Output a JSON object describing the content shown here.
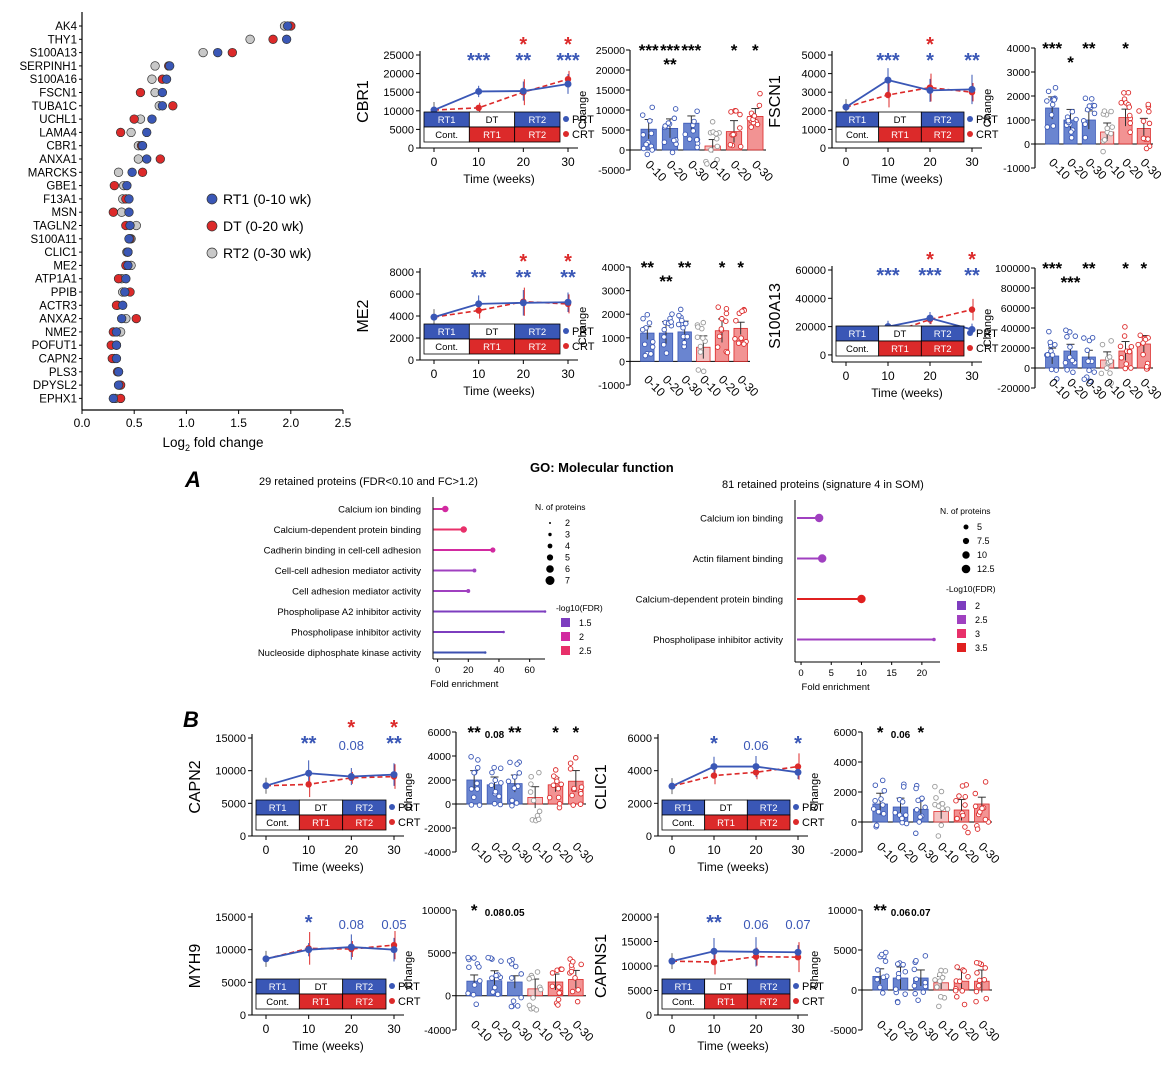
{
  "colors": {
    "blue": "#3a57b6",
    "red": "#dc2a2a",
    "gray": "#c8c8c8",
    "pinkdot": "#cc4444",
    "purple": "#8a2be2"
  },
  "left_panel": {
    "xlabel": "Log2 fold change",
    "xlabel_base": "Log",
    "xlabel_sub": "2",
    "xlabel_rest": " fold change",
    "xticks": [
      "0.0",
      "0.5",
      "1.0",
      "1.5",
      "2.0",
      "2.5"
    ],
    "legend": [
      "RT1 (0-10 wk)",
      "DT (0-20 wk)",
      "RT2 (0-30 wk)"
    ]
  },
  "chart_data": [
    {
      "type": "scatter",
      "title": "Log2 fold change per protein",
      "xlim": [
        0,
        2.5
      ],
      "categories": [
        "AK4",
        "THY1",
        "S100A13",
        "SERPINH1",
        "S100A16",
        "FSCN1",
        "TUBA1C",
        "UCHL1",
        "LAMA4",
        "CBR1",
        "ANXA1",
        "MARCKS",
        "GBE1",
        "F13A1",
        "MSN",
        "TAGLN2",
        "S100A11",
        "CLIC1",
        "ME2",
        "ATP1A1",
        "PPIB",
        "ACTR3",
        "ANXA2",
        "NME2",
        "POFUT1",
        "CAPN2",
        "PLS3",
        "DPYSL2",
        "EPHX1"
      ],
      "series": [
        {
          "name": "RT1 (0-10 wk)",
          "values": [
            1.97,
            1.96,
            1.3,
            0.84,
            0.81,
            0.77,
            0.77,
            0.67,
            0.62,
            0.58,
            0.62,
            0.48,
            0.43,
            0.45,
            0.45,
            0.46,
            0.45,
            0.44,
            0.44,
            0.42,
            0.41,
            0.39,
            0.38,
            0.33,
            0.33,
            0.33,
            0.35,
            0.35,
            0.3
          ]
        },
        {
          "name": "DT (0-20 wk)",
          "values": [
            2.0,
            1.83,
            1.44,
            0.83,
            0.77,
            0.56,
            0.87,
            0.5,
            0.37,
            0.57,
            0.75,
            0.58,
            0.31,
            0.42,
            0.3,
            0.42,
            0.46,
            0.44,
            0.42,
            0.35,
            0.46,
            0.33,
            0.52,
            0.3,
            0.28,
            0.29,
            0.34,
            0.37,
            0.37
          ]
        },
        {
          "name": "RT2 (0-30 wk)",
          "values": [
            1.94,
            1.61,
            1.16,
            0.7,
            0.67,
            0.7,
            0.74,
            0.56,
            0.47,
            0.54,
            0.54,
            0.35,
            0.4,
            0.39,
            0.38,
            0.52,
            0.47,
            0.43,
            0.47,
            0.38,
            0.39,
            0.34,
            0.42,
            0.37,
            0.33,
            0.31,
            0.35,
            0.36,
            0.32
          ]
        }
      ]
    },
    {
      "type": "line",
      "name": "CBR1",
      "label": "CBR1",
      "x": [
        0,
        10,
        20,
        30
      ],
      "ylim": [
        0,
        25000
      ],
      "yticks": [
        "0",
        "5000",
        "10000",
        "15000",
        "20000",
        "25000"
      ],
      "series": [
        {
          "name": "PRT",
          "values": [
            10200,
            15200,
            15300,
            17200
          ]
        },
        {
          "name": "CRT",
          "values": [
            10200,
            10800,
            15000,
            18500
          ]
        }
      ],
      "blue_sig": [
        "***",
        "**",
        "***"
      ],
      "red_sig": [
        "*",
        "*"
      ]
    },
    {
      "type": "line",
      "name": "FSCN1",
      "label": "FSCN1",
      "x": [
        0,
        10,
        20,
        30
      ],
      "ylim": [
        0,
        5000
      ],
      "yticks": [
        "0",
        "1000",
        "2000",
        "3000",
        "4000",
        "5000"
      ],
      "series": [
        {
          "name": "PRT",
          "values": [
            2200,
            3650,
            3100,
            3150
          ]
        },
        {
          "name": "CRT",
          "values": [
            2200,
            2850,
            3250,
            3000
          ]
        }
      ],
      "blue_sig": [
        "***",
        "*",
        "**"
      ],
      "red_sig": [
        "*",
        ""
      ]
    },
    {
      "type": "line",
      "name": "ME2",
      "label": "ME2",
      "x": [
        0,
        10,
        20,
        30
      ],
      "ylim": [
        0,
        8000
      ],
      "yticks": [
        "0",
        "2000",
        "4000",
        "6000",
        "8000"
      ],
      "series": [
        {
          "name": "PRT",
          "values": [
            3900,
            5100,
            5200,
            5250
          ]
        },
        {
          "name": "CRT",
          "values": [
            3900,
            4500,
            5300,
            5100
          ]
        }
      ],
      "blue_sig": [
        "**",
        "**",
        "**"
      ],
      "red_sig": [
        "*",
        "*"
      ]
    },
    {
      "type": "line",
      "name": "S100A13",
      "label": "S100A13",
      "x": [
        0,
        10,
        20,
        30
      ],
      "ylim": [
        -5000,
        60000
      ],
      "yticks": [
        "0",
        "20000",
        "40000",
        "60000"
      ],
      "series": [
        {
          "name": "PRT",
          "values": [
            8000,
            20000,
            26000,
            18000
          ]
        },
        {
          "name": "CRT",
          "values": [
            8000,
            15000,
            25000,
            32000
          ]
        }
      ],
      "blue_sig": [
        "***",
        "***",
        "**"
      ],
      "red_sig": [
        "*",
        "*"
      ]
    },
    {
      "type": "line",
      "name": "CAPN2",
      "label": "CAPN2",
      "x": [
        0,
        10,
        20,
        30
      ],
      "ylim": [
        0,
        15000
      ],
      "yticks": [
        "0",
        "5000",
        "10000",
        "15000"
      ],
      "series": [
        {
          "name": "PRT",
          "values": [
            7700,
            9600,
            9100,
            9400
          ]
        },
        {
          "name": "CRT",
          "values": [
            7700,
            7900,
            8900,
            9100
          ]
        }
      ],
      "blue_sig": [
        "**",
        "0.08",
        "**"
      ],
      "red_sig": [
        "*",
        "*"
      ]
    },
    {
      "type": "line",
      "name": "CLIC1",
      "label": "CLIC1",
      "x": [
        0,
        10,
        20,
        30
      ],
      "ylim": [
        0,
        6000
      ],
      "yticks": [
        "0",
        "2000",
        "4000",
        "6000"
      ],
      "series": [
        {
          "name": "PRT",
          "values": [
            3050,
            4250,
            4250,
            3900
          ]
        },
        {
          "name": "CRT",
          "values": [
            3050,
            3700,
            3900,
            4250
          ]
        }
      ],
      "blue_sig": [
        "*",
        "0.06",
        "*"
      ],
      "red_sig": []
    },
    {
      "type": "line",
      "name": "MYH9",
      "label": "MYH9",
      "x": [
        0,
        10,
        20,
        30
      ],
      "ylim": [
        0,
        15000
      ],
      "yticks": [
        "0",
        "5000",
        "10000",
        "15000"
      ],
      "series": [
        {
          "name": "PRT",
          "values": [
            8600,
            10000,
            10400,
            10000
          ]
        },
        {
          "name": "CRT",
          "values": [
            8600,
            10200,
            10100,
            10700
          ]
        }
      ],
      "blue_sig": [
        "*",
        "0.08",
        "0.05"
      ],
      "red_sig": []
    },
    {
      "type": "line",
      "name": "CAPNS1",
      "label": "CAPNS1",
      "x": [
        0,
        10,
        20,
        30
      ],
      "ylim": [
        0,
        20000
      ],
      "yticks": [
        "0",
        "5000",
        "10000",
        "15000",
        "20000"
      ],
      "series": [
        {
          "name": "PRT",
          "values": [
            11000,
            13000,
            12900,
            12800
          ]
        },
        {
          "name": "CRT",
          "values": [
            11000,
            10800,
            11900,
            11800
          ]
        }
      ],
      "blue_sig": [
        "**",
        "0.06",
        "0.07"
      ],
      "red_sig": []
    },
    {
      "type": "bar",
      "name": "CBR1 change",
      "categories": [
        "0-10",
        "0-20",
        "0-30",
        "0-10",
        "0-20",
        "0-30"
      ],
      "values": [
        5200,
        5400,
        6700,
        1000,
        4600,
        8400
      ],
      "ylim": [
        -5000,
        25000
      ],
      "yticks": [
        "-5000",
        "0",
        "5000",
        "10000",
        "15000",
        "20000",
        "25000"
      ],
      "sig_top": [
        "***",
        "***",
        "***",
        "",
        "*",
        "*"
      ],
      "sig_second": [
        "",
        "**",
        "",
        "",
        "",
        ""
      ]
    },
    {
      "type": "bar",
      "name": "FSCN1 change",
      "categories": [
        "0-10",
        "0-20",
        "0-30",
        "0-10",
        "0-20",
        "0-30"
      ],
      "values": [
        1500,
        1000,
        1000,
        500,
        1100,
        650
      ],
      "ylim": [
        -1000,
        4000
      ],
      "yticks": [
        "-1000",
        "0",
        "1000",
        "2000",
        "3000",
        "4000"
      ],
      "sig_top": [
        "***",
        "",
        "**",
        "",
        "*",
        ""
      ],
      "sig_second": [
        "",
        "*",
        "",
        "",
        "",
        ""
      ]
    },
    {
      "type": "bar",
      "name": "ME2 change",
      "categories": [
        "0-10",
        "0-20",
        "0-30",
        "0-10",
        "0-20",
        "0-30"
      ],
      "values": [
        1200,
        1200,
        1250,
        600,
        1300,
        1400
      ],
      "ylim": [
        -1000,
        4000
      ],
      "yticks": [
        "-1000",
        "0",
        "1000",
        "2000",
        "3000",
        "4000"
      ],
      "sig_top": [
        "**",
        "",
        "**",
        "",
        "*",
        "*"
      ],
      "sig_second": [
        "",
        "**",
        "",
        "",
        "",
        ""
      ]
    },
    {
      "type": "bar",
      "name": "S100A13 change",
      "categories": [
        "0-10",
        "0-20",
        "0-30",
        "0-10",
        "0-20",
        "0-30"
      ],
      "values": [
        12000,
        17000,
        11000,
        8000,
        17000,
        24000
      ],
      "ylim": [
        -20000,
        100000
      ],
      "yticks": [
        "-20000",
        "0",
        "20000",
        "40000",
        "60000",
        "80000",
        "100000"
      ],
      "sig_top": [
        "***",
        "",
        "**",
        "",
        "*",
        "*"
      ],
      "sig_second": [
        "",
        "***",
        "",
        "",
        "",
        ""
      ]
    },
    {
      "type": "bar",
      "name": "CAPN2 change",
      "categories": [
        "0-10",
        "0-20",
        "0-30",
        "0-10",
        "0-20",
        "0-30"
      ],
      "values": [
        2000,
        1600,
        1700,
        550,
        1600,
        1900
      ],
      "ylim": [
        -4000,
        6000
      ],
      "yticks": [
        "-4000",
        "-2000",
        "0",
        "2000",
        "4000",
        "6000"
      ],
      "sig_top": [
        "**",
        "0.08",
        "**",
        "",
        "*",
        "*"
      ],
      "sig_second": []
    },
    {
      "type": "bar",
      "name": "CLIC1 change",
      "categories": [
        "0-10",
        "0-20",
        "0-30",
        "0-10",
        "0-20",
        "0-30"
      ],
      "values": [
        1200,
        1000,
        850,
        700,
        800,
        1200
      ],
      "ylim": [
        -2000,
        6000
      ],
      "yticks": [
        "-2000",
        "0",
        "2000",
        "4000",
        "6000"
      ],
      "sig_top": [
        "*",
        "0.06",
        "*",
        "",
        "",
        ""
      ],
      "sig_second": []
    },
    {
      "type": "bar",
      "name": "MYH9 change",
      "categories": [
        "0-10",
        "0-20",
        "0-30",
        "0-10",
        "0-20",
        "0-30"
      ],
      "values": [
        1700,
        1750,
        1600,
        800,
        1600,
        1900
      ],
      "ylim": [
        -4000,
        10000
      ],
      "yticks": [
        "-4000",
        "0",
        "5000",
        "10000"
      ],
      "sig_top": [
        "*",
        "0.08",
        "0.05",
        "",
        "",
        ""
      ],
      "sig_second": []
    },
    {
      "type": "bar",
      "name": "CAPNS1 change",
      "categories": [
        "0-10",
        "0-20",
        "0-30",
        "0-10",
        "0-20",
        "0-30"
      ],
      "values": [
        1700,
        1500,
        1500,
        900,
        1100,
        1100
      ],
      "ylim": [
        -5000,
        10000
      ],
      "yticks": [
        "-5000",
        "0",
        "5000",
        "10000"
      ],
      "sig_top": [
        "**",
        "0.06",
        "0.07",
        "",
        "",
        ""
      ],
      "sig_second": []
    },
    {
      "type": "lollipop",
      "name": "29 retained proteins GO",
      "categories": [
        "Calcium ion binding",
        "Calcium-dependent protein binding",
        "Cadherin binding in cell-cell adhesion",
        "Cell-cell adhesion mediator activity",
        "Cell adhesion mediator activity",
        "Phospholipase A2 inhibitor activity",
        "Phospholipase inhibitor activity",
        "Nucleoside diphosphate kinase activity"
      ],
      "values": [
        5,
        17,
        36,
        24,
        20,
        70,
        43,
        31
      ],
      "sizes": [
        5,
        5,
        4,
        3,
        3,
        2,
        2,
        2
      ],
      "fdr": [
        2.3,
        2.5,
        2.2,
        1.9,
        1.8,
        1.7,
        1.6,
        1.4
      ],
      "xlim": [
        -3,
        70
      ],
      "xticks": [
        "0",
        "20",
        "40",
        "60"
      ]
    },
    {
      "type": "lollipop",
      "name": "81 retained proteins GO",
      "categories": [
        "Calcium ion binding",
        "Actin filament binding",
        "Calcium-dependent protein binding",
        "Phospholipase inhibitor activity"
      ],
      "values": [
        3,
        3.5,
        10,
        22
      ],
      "sizes": [
        7,
        7,
        7,
        3
      ],
      "fdr": [
        2,
        2,
        3.5,
        2
      ],
      "xlim": [
        -1,
        23
      ],
      "xticks": [
        "0",
        "5",
        "10",
        "15",
        "20"
      ]
    }
  ],
  "panel_A": {
    "letter": "A",
    "title": "GO: Molecular function",
    "left_subtitle": "29 retained proteins (FDR<0.10 and FC>1.2)",
    "right_subtitle": "81 retained proteins (signature 4 in SOM)",
    "xlabel": "Fold enrichment",
    "size_legend_title": "N. of proteins",
    "left_size_labels": [
      "2",
      "3",
      "4",
      "5",
      "6",
      "7"
    ],
    "right_size_labels": [
      "5",
      "7.5",
      "10",
      "12.5"
    ],
    "fdr_legend_title": "-log10(FDR)",
    "fdr_title_right": "-Log10(FDR)",
    "left_fdr_labels": [
      "1.5",
      "2",
      "2.5"
    ],
    "right_fdr_labels": [
      "2",
      "2.5",
      "3",
      "3.5"
    ]
  },
  "panel_B": {
    "letter": "B"
  },
  "common": {
    "time_label": "Time (weeks)",
    "change_label": "Change",
    "prt": "PRT",
    "crt": "CRT",
    "box_top": [
      "RT1",
      "DT",
      "RT2"
    ],
    "box_bottom": [
      "Cont.",
      "RT1",
      "RT2"
    ],
    "bar_categories": [
      "0-10",
      "0-20",
      "0-30",
      "0-10",
      "0-20",
      "0-30"
    ]
  }
}
